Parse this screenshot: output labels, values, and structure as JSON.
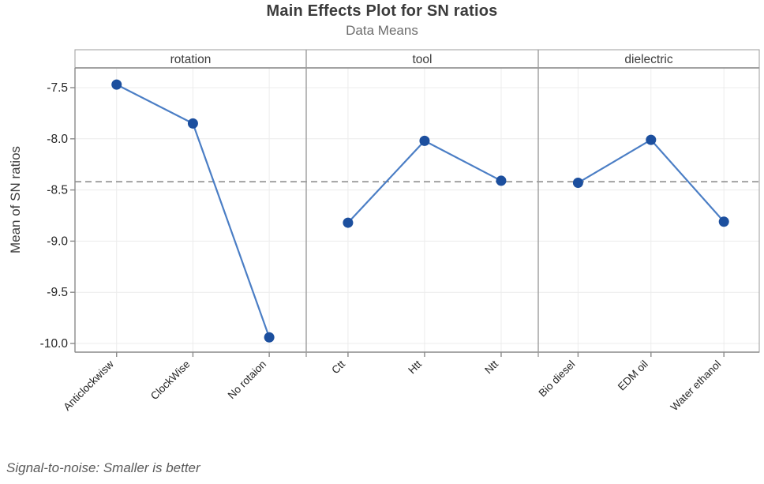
{
  "header": {
    "title": "Main Effects Plot for SN ratios",
    "subtitle": "Data Means"
  },
  "footnote": "Signal-to-noise: Smaller is better",
  "chart_data": {
    "type": "line",
    "title": "Main Effects Plot for SN ratios",
    "subtitle": "Data Means",
    "ylabel": "Mean of SN ratios",
    "ylim": [
      -10.15,
      -7.3
    ],
    "ytick_values": [
      -7.5,
      -8.0,
      -8.5,
      -9.0,
      -9.5,
      -10.0
    ],
    "ytick_labels": [
      "-7.5",
      "-8.0",
      "-8.5",
      "-9.0",
      "-9.5",
      "-10.0"
    ],
    "grid": true,
    "legend_position": "none",
    "reference_line": {
      "style": "dashed",
      "value": -8.42,
      "meaning": "grand mean of SN ratios"
    },
    "panels": [
      {
        "factor": "rotation",
        "categories": [
          "Anticlockwisw",
          "ClockWise",
          "No rotaion"
        ],
        "values": [
          -7.47,
          -7.85,
          -9.94
        ]
      },
      {
        "factor": "tool",
        "categories": [
          "Ctt",
          "Htt",
          "Ntt"
        ],
        "values": [
          -8.82,
          -8.02,
          -8.41
        ]
      },
      {
        "factor": "dielectric",
        "categories": [
          "Bio diesel",
          "EDM oil",
          "Water ethanol"
        ],
        "values": [
          -8.43,
          -8.01,
          -8.81
        ]
      }
    ]
  },
  "colors": {
    "marker": "#1c4f9e",
    "line": "#4b7ec5",
    "reference_line": "#8f8f8f",
    "panel_border": "#9d9d9d",
    "axis_line": "#8a8a8a",
    "grid_line": "#ececec",
    "title_text": "#3b3b3b",
    "subtitle_text": "#6c6c6c",
    "header_text": "#3c3c3c",
    "tick_text": "#262626",
    "footnote_text": "#5a5a5a"
  }
}
